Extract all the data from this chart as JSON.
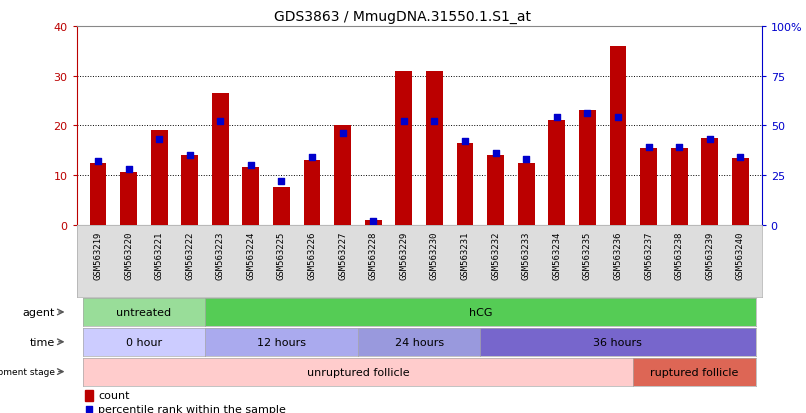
{
  "title": "GDS3863 / MmugDNA.31550.1.S1_at",
  "samples": [
    "GSM563219",
    "GSM563220",
    "GSM563221",
    "GSM563222",
    "GSM563223",
    "GSM563224",
    "GSM563225",
    "GSM563226",
    "GSM563227",
    "GSM563228",
    "GSM563229",
    "GSM563230",
    "GSM563231",
    "GSM563232",
    "GSM563233",
    "GSM563234",
    "GSM563235",
    "GSM563236",
    "GSM563237",
    "GSM563238",
    "GSM563239",
    "GSM563240"
  ],
  "count": [
    12.5,
    10.5,
    19.0,
    14.0,
    26.5,
    11.5,
    7.5,
    13.0,
    20.0,
    1.0,
    31.0,
    31.0,
    16.5,
    14.0,
    12.5,
    21.0,
    23.0,
    36.0,
    15.5,
    15.5,
    17.5,
    13.5
  ],
  "percentile": [
    32,
    28,
    43,
    35,
    52,
    30,
    22,
    34,
    46,
    2,
    52,
    52,
    42,
    36,
    33,
    54,
    56,
    54,
    39,
    39,
    43,
    34
  ],
  "bar_color": "#bb0000",
  "percentile_color": "#0000cc",
  "ylim_left": [
    0,
    40
  ],
  "ylim_right": [
    0,
    100
  ],
  "yticks_left": [
    0,
    10,
    20,
    30,
    40
  ],
  "yticks_right": [
    0,
    25,
    50,
    75,
    100
  ],
  "ytick_labels_right": [
    "0",
    "25",
    "50",
    "75",
    "100%"
  ],
  "agent_groups": [
    {
      "label": "untreated",
      "start": 0,
      "end": 4,
      "color": "#99dd99"
    },
    {
      "label": "hCG",
      "start": 4,
      "end": 22,
      "color": "#55cc55"
    }
  ],
  "time_groups": [
    {
      "label": "0 hour",
      "start": 0,
      "end": 4,
      "color": "#ccccff"
    },
    {
      "label": "12 hours",
      "start": 4,
      "end": 9,
      "color": "#aaaaee"
    },
    {
      "label": "24 hours",
      "start": 9,
      "end": 13,
      "color": "#9999dd"
    },
    {
      "label": "36 hours",
      "start": 13,
      "end": 22,
      "color": "#7766cc"
    }
  ],
  "dev_groups": [
    {
      "label": "unruptured follicle",
      "start": 0,
      "end": 18,
      "color": "#ffcccc"
    },
    {
      "label": "ruptured follicle",
      "start": 18,
      "end": 22,
      "color": "#dd6655"
    }
  ],
  "legend_count_label": "count",
  "legend_pct_label": "percentile rank within the sample",
  "bg_color": "#ffffff",
  "bar_color_left": "#bb0000",
  "tick_color_right": "#0000cc",
  "xtick_bg": "#dddddd",
  "row_label_color": "#444444"
}
